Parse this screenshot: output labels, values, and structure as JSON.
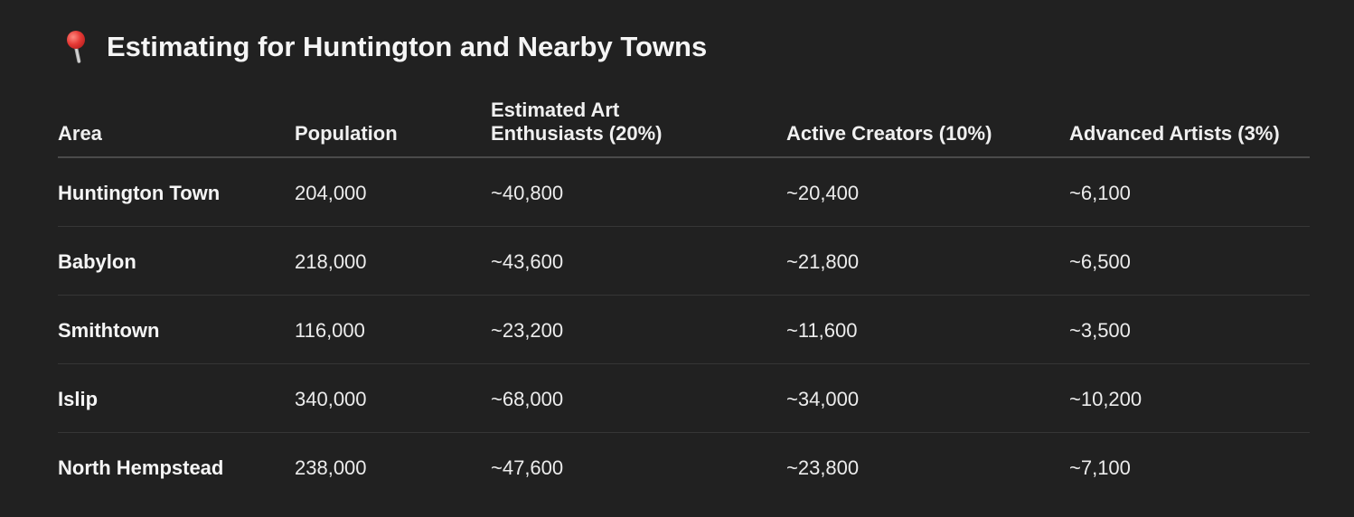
{
  "section": {
    "icon": "round-pushpin-icon",
    "title": "Estimating for Huntington and Nearby Towns"
  },
  "table": {
    "headers": [
      "Area",
      "Population",
      "Estimated Art Enthusiasts (20%)",
      "Active Creators (10%)",
      "Advanced Artists (3%)"
    ],
    "rows": [
      [
        "Huntington Town",
        "204,000",
        "~40,800",
        "~20,400",
        "~6,100"
      ],
      [
        "Babylon",
        "218,000",
        "~43,600",
        "~21,800",
        "~6,500"
      ],
      [
        "Smithtown",
        "116,000",
        "~23,200",
        "~11,600",
        "~3,500"
      ],
      [
        "Islip",
        "340,000",
        "~68,000",
        "~34,000",
        "~10,200"
      ],
      [
        "North Hempstead",
        "238,000",
        "~47,600",
        "~23,800",
        "~7,100"
      ]
    ]
  }
}
